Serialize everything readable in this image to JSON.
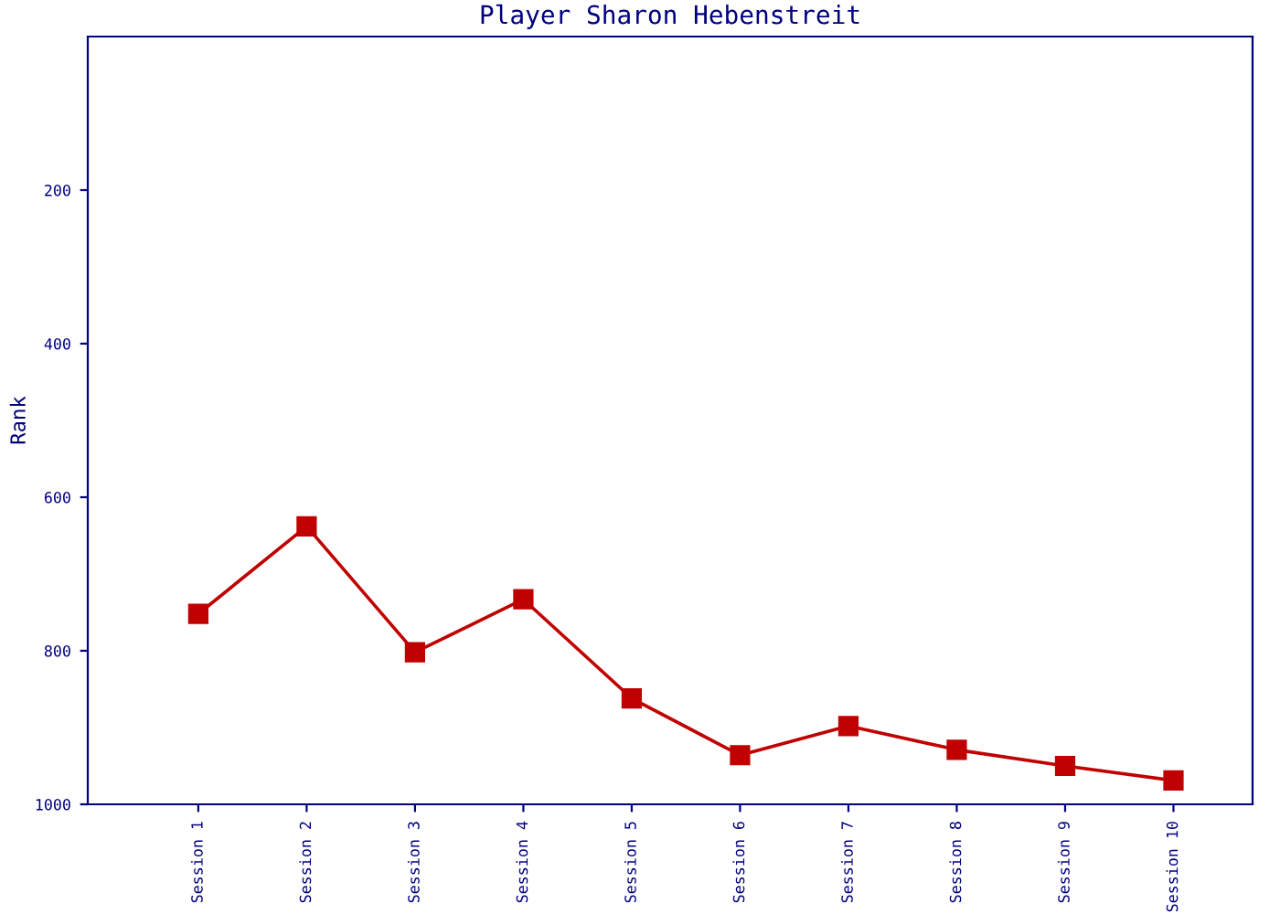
{
  "chart_data": {
    "type": "line",
    "title": "Player Sharon Hebenstreit",
    "ylabel": "Rank",
    "categories": [
      "Session 1",
      "Session 2",
      "Session 3",
      "Session 4",
      "Session 5",
      "Session 6",
      "Session 7",
      "Session 8",
      "Session 9",
      "Session 10"
    ],
    "series": [
      {
        "color": "#c00000",
        "values": [
          752,
          638,
          802,
          733,
          862,
          936,
          898,
          929,
          950,
          969
        ]
      }
    ],
    "ylim": [
      1000,
      0
    ],
    "yticks": [
      200,
      400,
      600,
      800,
      1000
    ],
    "marker": "square",
    "line_style": "solid",
    "grid": false,
    "legend": false
  }
}
